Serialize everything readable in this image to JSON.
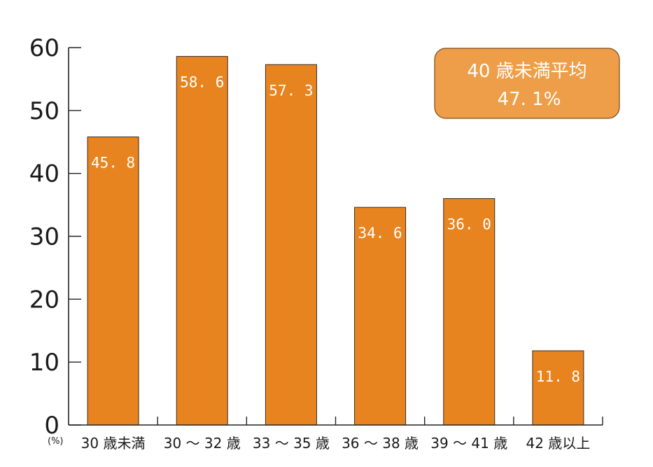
{
  "chart_data": {
    "type": "bar",
    "unit": "(%)",
    "categories": [
      "30 歳未満",
      "30 〜 32 歳",
      "33 〜 35 歳",
      "36 〜 38 歳",
      "39 〜 41 歳",
      "42 歳以上"
    ],
    "values": [
      45.8,
      58.6,
      57.3,
      34.6,
      36.0,
      11.8
    ],
    "value_labels": [
      "45. 8",
      "58. 6",
      "57. 3",
      "34. 6",
      "36. 0",
      "11. 8"
    ],
    "yticks": [
      0,
      10,
      20,
      30,
      40,
      50,
      60
    ],
    "ylim": [
      0,
      60
    ],
    "grid": false,
    "bar_color": "#E8841F",
    "annotation": {
      "line1": "40 歳未満平均",
      "line2": "47. 1%",
      "fill": "#EE9E48"
    }
  }
}
